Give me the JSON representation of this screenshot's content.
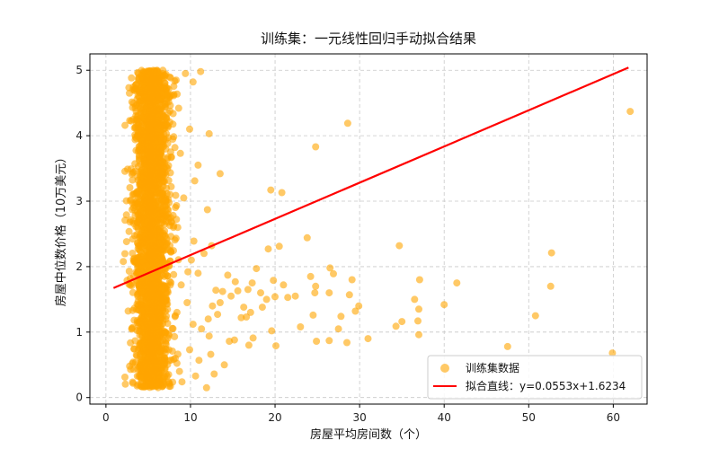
{
  "chart_data": {
    "type": "scatter",
    "title": "训练集：一元线性回归手动拟合结果",
    "xlabel": "房屋平均房间数（个）",
    "ylabel": "房屋中位数价格（10万美元）",
    "xlim": [
      -1.9,
      64.0
    ],
    "ylim": [
      -0.1,
      5.25
    ],
    "xticks": [
      0,
      10,
      20,
      30,
      40,
      50,
      60
    ],
    "yticks": [
      0,
      1,
      2,
      3,
      4,
      5
    ],
    "grid": true,
    "legend_position": "lower-right",
    "series": [
      {
        "name": "训练集数据",
        "kind": "scatter",
        "color": "#FFA500",
        "points": [
          [
            62.0,
            4.37
          ],
          [
            59.9,
            0.68
          ],
          [
            52.7,
            2.21
          ],
          [
            52.6,
            1.7
          ],
          [
            50.8,
            1.25
          ],
          [
            47.5,
            0.78
          ],
          [
            41.5,
            1.75
          ],
          [
            40.0,
            1.42
          ],
          [
            37.1,
            1.8
          ],
          [
            37.0,
            1.35
          ],
          [
            36.9,
            1.17
          ],
          [
            37.0,
            0.96
          ],
          [
            36.5,
            1.5
          ],
          [
            34.7,
            2.32
          ],
          [
            35.0,
            1.16
          ],
          [
            34.3,
            1.09
          ],
          [
            31.0,
            0.9
          ],
          [
            29.9,
            1.4
          ],
          [
            29.5,
            1.32
          ],
          [
            29.1,
            1.8
          ],
          [
            28.8,
            1.57
          ],
          [
            28.6,
            4.19
          ],
          [
            28.5,
            0.84
          ],
          [
            27.8,
            1.24
          ],
          [
            27.5,
            1.05
          ],
          [
            26.9,
            1.89
          ],
          [
            26.5,
            1.98
          ],
          [
            26.4,
            1.6
          ],
          [
            26.4,
            0.87
          ],
          [
            24.8,
            3.83
          ],
          [
            24.8,
            1.7
          ],
          [
            24.9,
            0.86
          ],
          [
            24.7,
            1.6
          ],
          [
            24.5,
            1.26
          ],
          [
            24.2,
            1.85
          ],
          [
            23.8,
            2.44
          ],
          [
            23.0,
            1.08
          ],
          [
            22.4,
            1.55
          ],
          [
            21.5,
            1.53
          ],
          [
            21.0,
            1.72
          ],
          [
            20.8,
            3.13
          ],
          [
            20.5,
            2.31
          ],
          [
            20.1,
            0.79
          ],
          [
            20.0,
            1.54
          ],
          [
            19.8,
            1.79
          ],
          [
            19.5,
            3.17
          ],
          [
            19.6,
            1.02
          ],
          [
            19.2,
            2.27
          ],
          [
            19.0,
            1.5
          ],
          [
            18.5,
            1.38
          ],
          [
            18.3,
            1.6
          ],
          [
            17.8,
            1.97
          ],
          [
            17.4,
            0.91
          ],
          [
            17.3,
            1.75
          ],
          [
            17.1,
            1.3
          ],
          [
            16.9,
            0.8
          ],
          [
            16.8,
            1.65
          ],
          [
            16.6,
            1.23
          ],
          [
            16.3,
            1.38
          ],
          [
            16.0,
            1.22
          ],
          [
            15.6,
            1.63
          ],
          [
            15.3,
            1.77
          ],
          [
            15.2,
            0.88
          ],
          [
            14.8,
            1.55
          ],
          [
            14.6,
            0.86
          ],
          [
            14.4,
            1.87
          ],
          [
            14.0,
            0.5
          ],
          [
            13.8,
            1.62
          ],
          [
            13.5,
            1.45
          ],
          [
            13.2,
            1.27
          ],
          [
            13.0,
            1.64
          ],
          [
            12.8,
            0.36
          ],
          [
            12.6,
            1.4
          ],
          [
            12.4,
            0.66
          ],
          [
            12.2,
            0.94
          ],
          [
            12.1,
            1.2
          ],
          [
            11.9,
            0.15
          ],
          [
            12.0,
            2.87
          ],
          [
            12.2,
            4.03
          ],
          [
            11.6,
            2.2
          ],
          [
            11.3,
            1.05
          ],
          [
            11.0,
            0.57
          ],
          [
            10.9,
            1.9
          ],
          [
            10.6,
            0.33
          ],
          [
            10.5,
            3.31
          ],
          [
            10.3,
            1.12
          ],
          [
            10.1,
            2.1
          ],
          [
            9.9,
            0.73
          ],
          [
            9.6,
            1.45
          ],
          [
            9.4,
            4.95
          ],
          [
            9.2,
            3.05
          ],
          [
            9.0,
            0.24
          ],
          [
            8.9,
            1.72
          ],
          [
            8.8,
            3.73
          ],
          [
            8.7,
            0.4
          ],
          [
            8.6,
            4.42
          ],
          [
            8.5,
            2.6
          ],
          [
            8.4,
            1.3
          ],
          [
            8.3,
            4.85
          ],
          [
            8.2,
            0.6
          ],
          [
            13.5,
            3.42
          ],
          [
            12.5,
            2.32
          ],
          [
            11.2,
            4.98
          ],
          [
            10.9,
            3.55
          ],
          [
            10.3,
            4.82
          ],
          [
            10.4,
            2.39
          ],
          [
            9.9,
            4.1
          ],
          [
            9.7,
            1.92
          ]
        ]
      },
      {
        "name": "拟合直线：y=0.0553x+1.6234",
        "kind": "line",
        "color": "#FF0000",
        "slope": 0.0553,
        "intercept": 1.6234,
        "x_range": [
          0.9,
          61.8
        ]
      }
    ]
  }
}
